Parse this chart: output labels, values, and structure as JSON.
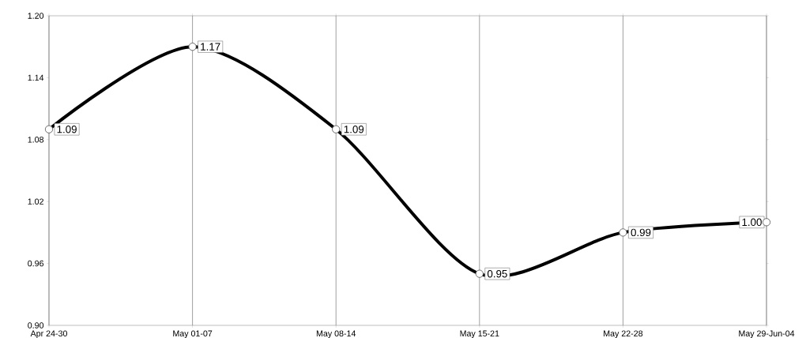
{
  "chart_data": {
    "type": "line",
    "categories": [
      "Apr 24-30",
      "May 01-07",
      "May 08-14",
      "May 15-21",
      "May 22-28",
      "May 29-Jun-04"
    ],
    "values": [
      1.09,
      1.17,
      1.09,
      0.95,
      0.99,
      1.0
    ],
    "value_labels": [
      "1.09",
      "1.17",
      "1.09",
      "0.95",
      "0.99",
      "1.00"
    ],
    "color": "#000000",
    "ylim": [
      0.9,
      1.2
    ],
    "yticks": [
      {
        "value": 0.9,
        "label": "0.90"
      },
      0.96,
      1.02,
      1.08,
      1.14,
      {
        "value": 1.2,
        "label": "1.20"
      }
    ],
    "grid": "x",
    "marker": "circle",
    "line_style": "solid"
  }
}
